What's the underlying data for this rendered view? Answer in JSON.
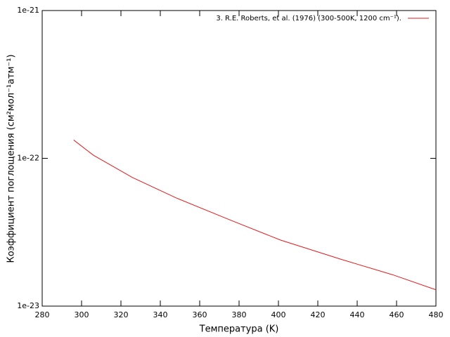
{
  "chart_data": {
    "type": "line",
    "xlabel": "Температура (K)",
    "ylabel": "Коэффициент поглощения (см²мол⁻¹атм⁻¹)",
    "x": [
      296,
      306,
      326,
      348,
      376,
      401,
      432,
      458,
      480
    ],
    "series": [
      {
        "name": "3. R.E. Roberts, et al. (1976) (300-500K, 1200 cm⁻¹).",
        "color": "#e41a1c",
        "values": [
          1.33e-22,
          1.05e-22,
          7.4e-23,
          5.4e-23,
          3.8e-23,
          2.8e-23,
          2.07e-23,
          1.63e-23,
          1.29e-23
        ]
      }
    ],
    "xlim": [
      280,
      480
    ],
    "xticks": [
      280,
      300,
      320,
      340,
      360,
      380,
      400,
      420,
      440,
      460,
      480
    ],
    "ylim": [
      1e-23,
      1e-21
    ],
    "yticks": [
      1e-23,
      1e-22,
      1e-21
    ],
    "log_y": true,
    "legend": "top-right"
  }
}
